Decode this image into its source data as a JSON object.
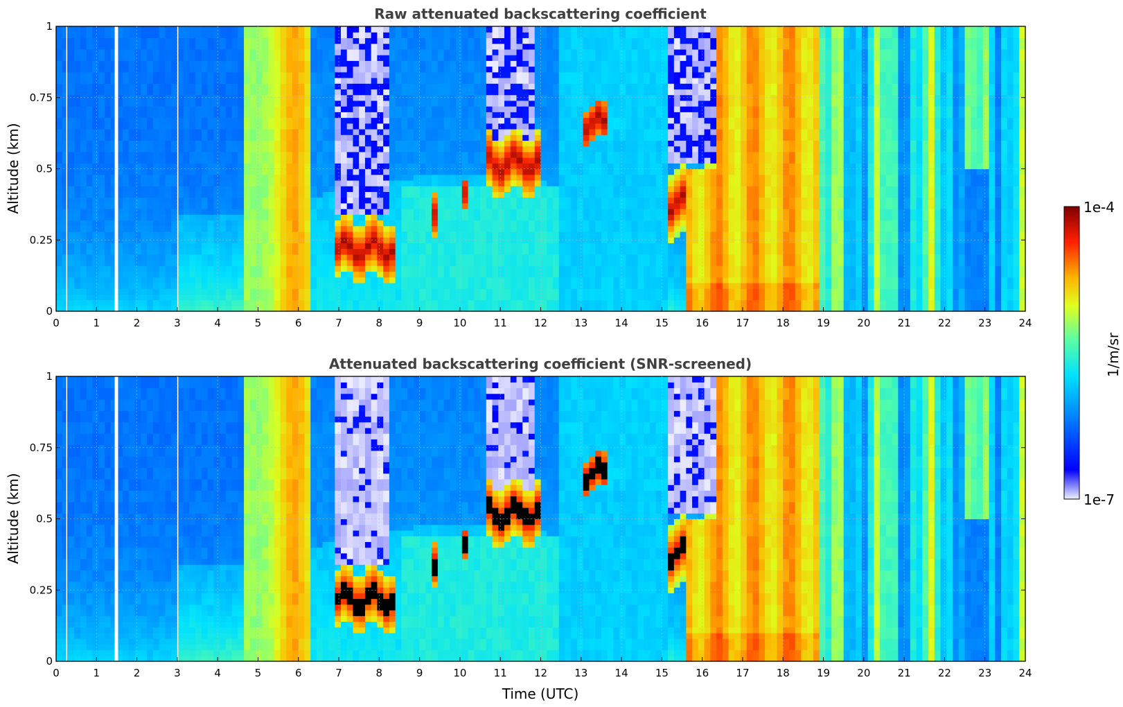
{
  "chart_data": [
    {
      "type": "heatmap",
      "title": "Raw attenuated backscattering coefficient",
      "xlabel": "",
      "ylabel": "Altitude (km)",
      "xlim": [
        0,
        24
      ],
      "ylim": [
        0,
        1
      ],
      "x_ticks": [
        "0",
        "1",
        "2",
        "3",
        "4",
        "5",
        "6",
        "7",
        "8",
        "9",
        "10",
        "11",
        "12",
        "13",
        "14",
        "15",
        "16",
        "17",
        "18",
        "19",
        "20",
        "21",
        "22",
        "23",
        "24"
      ],
      "y_ticks": [
        "0",
        "0.25",
        "0.5",
        "0.75",
        "1"
      ],
      "grid": true,
      "colorscale": "jet",
      "data_gaps_utc": [
        0.25,
        1.45,
        3.0
      ],
      "features": [
        {
          "name": "aerosol layer",
          "x_range": [
            4.6,
            6.3
          ],
          "level": "high"
        },
        {
          "name": "cloud base",
          "x_range": [
            6.9,
            8.3
          ],
          "altitude_km": 0.25
        },
        {
          "name": "cloud base",
          "x_range": [
            10.7,
            12.0
          ],
          "altitude_km": 0.5
        },
        {
          "name": "cloud base",
          "x_range": [
            15.1,
            16.4
          ],
          "altitude_km": 0.38
        },
        {
          "name": "high backscatter",
          "x_range": [
            15.6,
            18.9
          ],
          "level": "high"
        }
      ]
    },
    {
      "type": "heatmap",
      "title": "Attenuated backscattering coefficient (SNR-screened)",
      "xlabel": "Time (UTC)",
      "ylabel": "Altitude (km)",
      "xlim": [
        0,
        24
      ],
      "ylim": [
        0,
        1
      ],
      "x_ticks": [
        "0",
        "1",
        "2",
        "3",
        "4",
        "5",
        "6",
        "7",
        "8",
        "9",
        "10",
        "11",
        "12",
        "13",
        "14",
        "15",
        "16",
        "17",
        "18",
        "19",
        "20",
        "21",
        "22",
        "23",
        "24"
      ],
      "y_ticks": [
        "0",
        "0.25",
        "0.5",
        "0.75",
        "1"
      ],
      "grid": true,
      "colorscale": "jet",
      "saturated_color": "#000000"
    }
  ],
  "colorbar": {
    "max_label": "1e-4",
    "min_label": "1e-7",
    "label": "1/m/sr"
  }
}
